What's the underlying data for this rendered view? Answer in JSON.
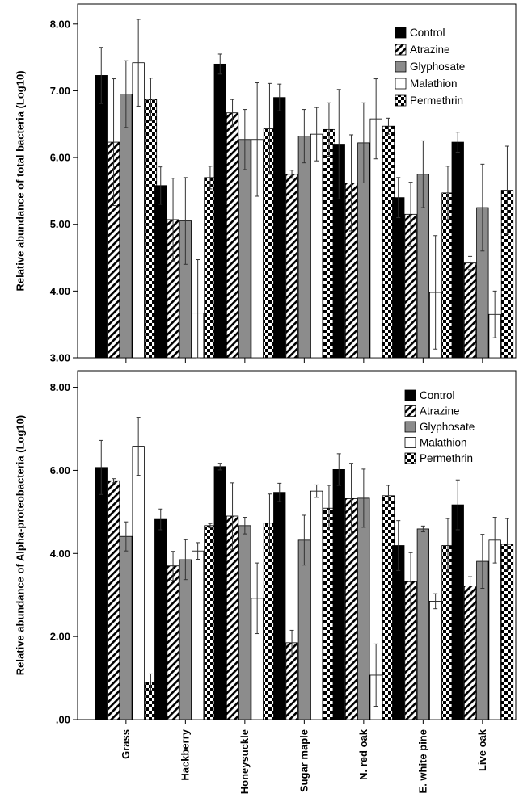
{
  "colors": {
    "control": "#000000",
    "glyphosate": "#8c8c8c",
    "malathion": "#ffffff",
    "axis": "#000000"
  },
  "chart_data": [
    {
      "type": "bar",
      "ylabel": "Relative abundance of total bacteria (Log10)",
      "ylim": [
        3.0,
        8.3
      ],
      "yticks": [
        "3.00",
        "4.00",
        "5.00",
        "6.00",
        "7.00",
        "8.00"
      ],
      "ytick_values": [
        3,
        4,
        5,
        6,
        7,
        8
      ],
      "legend_position": "top-right",
      "categories": [
        "Grass",
        "Hackberry",
        "Honeysuckle",
        "Sugar maple",
        "N. red oak",
        "E. white pine",
        "Live oak"
      ],
      "series": [
        {
          "name": "Control",
          "pattern": "solid-black",
          "values": [
            7.23,
            5.58,
            7.4,
            6.9,
            6.2,
            5.4,
            6.23
          ],
          "errors": [
            0.42,
            0.28,
            0.15,
            0.2,
            0.82,
            0.3,
            0.15
          ]
        },
        {
          "name": "Atrazine",
          "pattern": "diagonal-hatch",
          "values": [
            6.23,
            5.07,
            6.67,
            5.75,
            5.62,
            5.15,
            4.42
          ],
          "errors": [
            0.95,
            0.62,
            0.2,
            0.06,
            0.72,
            0.48,
            0.1
          ]
        },
        {
          "name": "Glyphosate",
          "pattern": "solid-gray",
          "values": [
            6.95,
            5.05,
            6.27,
            6.32,
            6.22,
            5.75,
            5.25
          ],
          "errors": [
            0.5,
            0.65,
            0.45,
            0.4,
            0.6,
            0.5,
            0.65
          ]
        },
        {
          "name": "Malathion",
          "pattern": "white",
          "values": [
            7.42,
            3.67,
            6.27,
            6.35,
            6.58,
            3.98,
            3.65
          ],
          "errors": [
            0.65,
            0.8,
            0.85,
            0.4,
            0.6,
            0.85,
            0.35
          ]
        },
        {
          "name": "Permethrin",
          "pattern": "checkerboard",
          "values": [
            6.87,
            5.7,
            6.43,
            6.42,
            6.47,
            5.47,
            5.51
          ],
          "errors": [
            0.32,
            0.17,
            0.68,
            0.4,
            0.12,
            0.4,
            0.66
          ]
        }
      ]
    },
    {
      "type": "bar",
      "ylabel": "Relative abundance of Alpha-proteobacteria (Log10)",
      "ylim": [
        0.0,
        8.4
      ],
      "yticks": [
        ".00",
        "2.00",
        "4.00",
        "6.00",
        "8.00"
      ],
      "ytick_values": [
        0,
        2,
        4,
        6,
        8
      ],
      "legend_position": "top-right",
      "categories": [
        "Grass",
        "Hackberry",
        "Honeysuckle",
        "Sugar maple",
        "N. red oak",
        "E. white pine",
        "Live oak"
      ],
      "series": [
        {
          "name": "Control",
          "pattern": "solid-black",
          "values": [
            6.07,
            4.82,
            6.09,
            5.47,
            6.02,
            4.19,
            5.17
          ],
          "errors": [
            0.65,
            0.25,
            0.08,
            0.22,
            0.38,
            0.6,
            0.6
          ]
        },
        {
          "name": "Atrazine",
          "pattern": "diagonal-hatch",
          "values": [
            5.75,
            3.7,
            4.9,
            1.85,
            5.32,
            3.32,
            3.22
          ],
          "errors": [
            0.05,
            0.35,
            0.8,
            0.3,
            0.85,
            0.7,
            0.22
          ]
        },
        {
          "name": "Glyphosate",
          "pattern": "solid-gray",
          "values": [
            4.41,
            3.85,
            4.67,
            4.32,
            5.33,
            4.59,
            3.81
          ],
          "errors": [
            0.35,
            0.48,
            0.2,
            0.6,
            0.7,
            0.07,
            0.65
          ]
        },
        {
          "name": "Malathion",
          "pattern": "white",
          "values": [
            6.58,
            4.06,
            2.92,
            5.5,
            1.07,
            2.85,
            4.32
          ],
          "errors": [
            0.7,
            0.2,
            0.85,
            0.15,
            0.75,
            0.18,
            0.55
          ]
        },
        {
          "name": "Permethrin",
          "pattern": "checkerboard",
          "values": [
            0.9,
            4.67,
            4.73,
            5.09,
            5.39,
            4.19,
            4.22
          ],
          "errors": [
            0.2,
            0.05,
            0.7,
            0.55,
            0.25,
            0.65,
            0.62
          ]
        }
      ]
    }
  ]
}
